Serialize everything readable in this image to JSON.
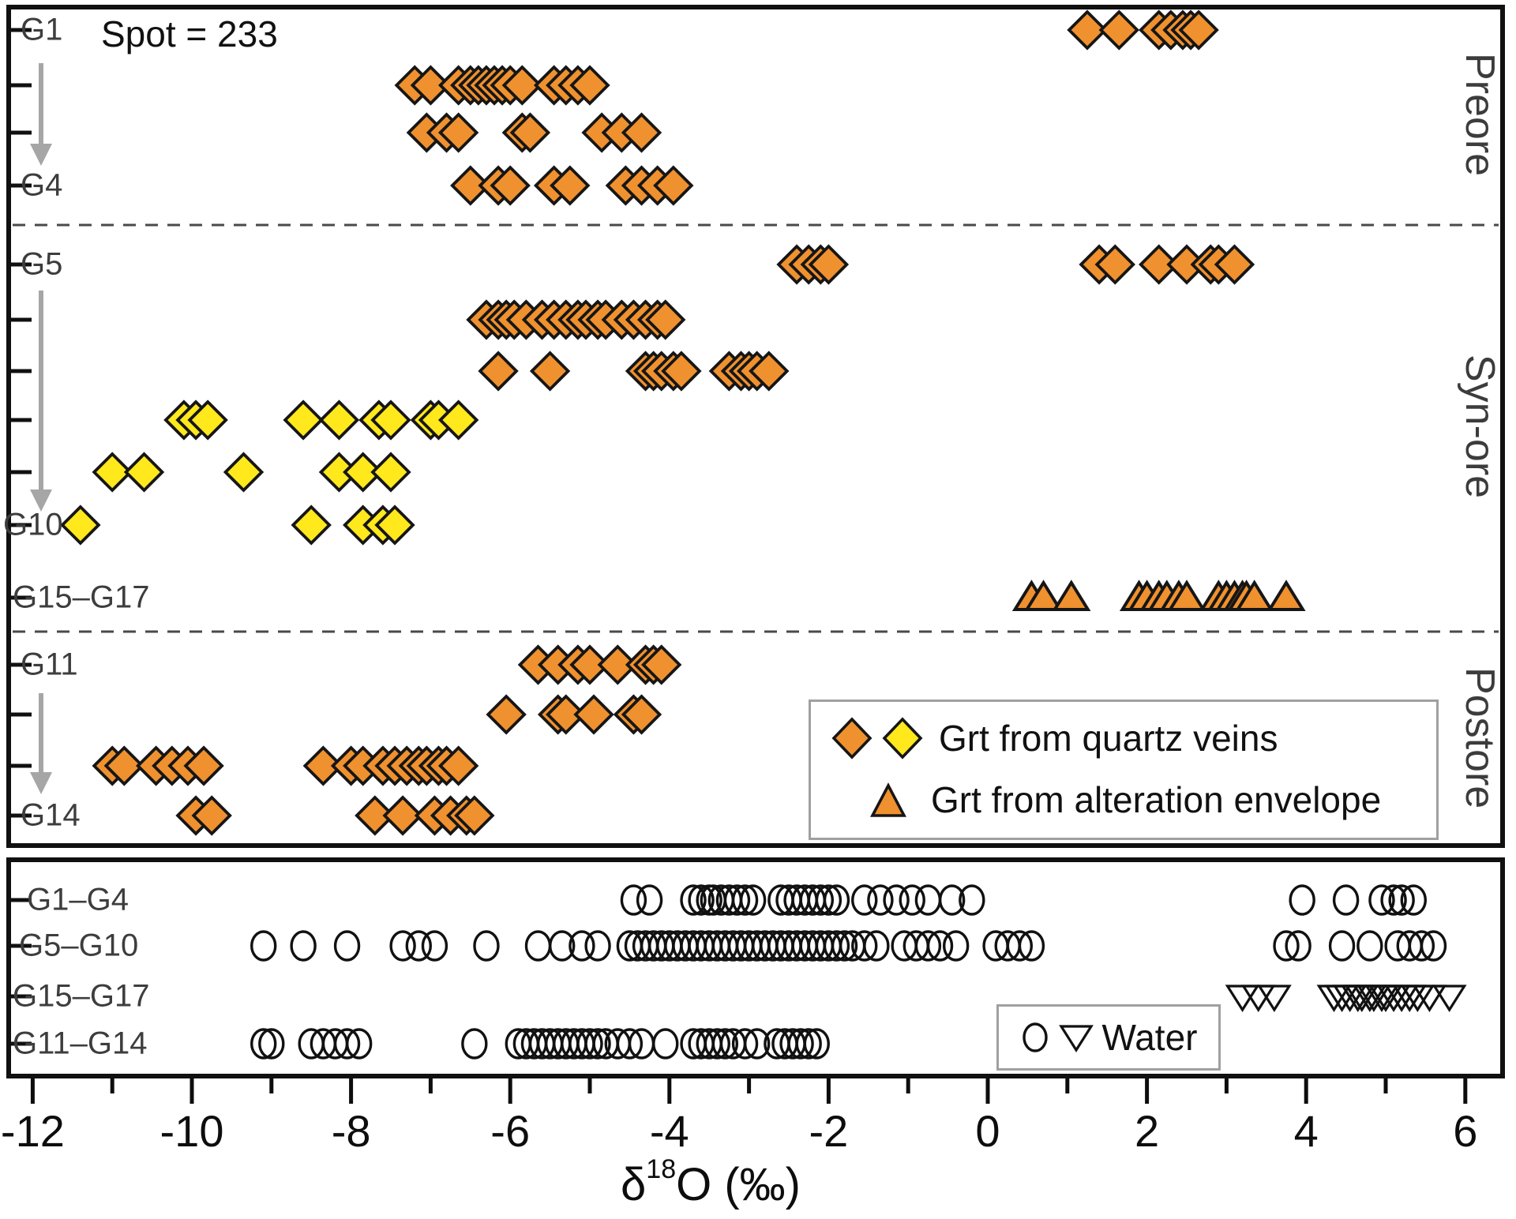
{
  "spot_note": "Spot = 233",
  "sections": [
    {
      "name": "Preore"
    },
    {
      "name": "Syn-ore"
    },
    {
      "name": "Postore"
    }
  ],
  "legend_garnet": {
    "items": [
      {
        "markers": [
          "diamond-orange",
          "diamond-yellow"
        ],
        "label": "Grt from quartz veins"
      },
      {
        "markers": [
          "triangle-orange"
        ],
        "label": "Grt from alteration envelope"
      }
    ]
  },
  "legend_water": {
    "markers": [
      "circle-open",
      "triangle-down-open"
    ],
    "label": "Water"
  },
  "axis": {
    "title_delta": "δ",
    "title_sup": "18",
    "title_rest": "O (‰)"
  },
  "colors": {
    "orange": "#F0912F",
    "yellow": "#FFE81C",
    "outline": "#161616",
    "open_marker": "#111111",
    "arrow_gray": "#a6a6a6",
    "label_gray": "#3d3d3d"
  },
  "chart_data": {
    "type": "scatter",
    "xlabel": "δ18O (‰)",
    "xlim": [
      -12.45,
      6.55
    ],
    "grid": false,
    "x_ticks_labeled": [
      -12,
      -10,
      -8,
      -6,
      -4,
      -2,
      0,
      2,
      4,
      6
    ],
    "x_ticks_minor": [
      -11,
      -9,
      -7,
      -5,
      -3,
      -1,
      1,
      3,
      5
    ],
    "arrows": [
      {
        "from": "G1",
        "to": "G4"
      },
      {
        "from": "G5",
        "to": "G10"
      },
      {
        "from": "G11",
        "to": "G14"
      }
    ],
    "panels": [
      {
        "id": "garnet",
        "sections": [
          "Preore",
          "Syn-ore",
          "Postore"
        ],
        "rows": [
          {
            "label": "G1",
            "section": "Preore",
            "marker": "diamond-orange",
            "values": [
              1.25,
              1.65,
              2.15,
              2.3,
              2.45,
              2.55,
              2.65
            ]
          },
          {
            "label": "",
            "section": "Preore",
            "marker": "diamond-orange",
            "values": [
              -7.2,
              -7.0,
              -6.65,
              -6.5,
              -6.4,
              -6.3,
              -6.2,
              -6.1,
              -6.0,
              -5.85,
              -5.45,
              -5.3,
              -5.15,
              -5.0
            ]
          },
          {
            "label": "",
            "section": "Preore",
            "marker": "diamond-orange",
            "values": [
              -7.05,
              -6.8,
              -6.65,
              -5.85,
              -5.75,
              -4.85,
              -4.6,
              -4.35
            ]
          },
          {
            "label": "G4",
            "section": "Preore",
            "marker": "diamond-orange",
            "values": [
              -6.5,
              -6.15,
              -6.0,
              -5.45,
              -5.25,
              -4.55,
              -4.35,
              -4.15,
              -3.95
            ]
          },
          {
            "label": "G5",
            "section": "Syn-ore",
            "marker": "diamond-orange",
            "values": [
              -2.4,
              -2.25,
              -2.1,
              -2.0,
              1.4,
              1.6,
              2.15,
              2.5,
              2.8,
              2.9,
              3.1
            ]
          },
          {
            "label": "",
            "section": "Syn-ore",
            "marker": "diamond-orange",
            "values": [
              -6.3,
              -6.15,
              -6.05,
              -5.95,
              -5.8,
              -5.6,
              -5.45,
              -5.3,
              -5.15,
              -5.05,
              -4.9,
              -4.8,
              -4.6,
              -4.45,
              -4.3,
              -4.15,
              -4.05
            ]
          },
          {
            "label": "",
            "section": "Syn-ore",
            "marker": "diamond-orange",
            "values": [
              -6.15,
              -5.5,
              -4.3,
              -4.2,
              -4.1,
              -3.95,
              -3.85,
              -3.25,
              -3.1,
              -3.0,
              -2.9,
              -2.75
            ]
          },
          {
            "label": "",
            "section": "Syn-ore",
            "marker": "diamond-yellow",
            "values": [
              -10.1,
              -9.95,
              -9.8,
              -8.6,
              -8.15,
              -7.65,
              -7.5,
              -7.0,
              -6.9,
              -6.65
            ]
          },
          {
            "label": "",
            "section": "Syn-ore",
            "marker": "diamond-yellow",
            "values": [
              -11.0,
              -10.6,
              -9.35,
              -8.15,
              -7.85,
              -7.5
            ]
          },
          {
            "label": "G10",
            "section": "Syn-ore",
            "marker": "diamond-yellow",
            "values": [
              -11.4,
              -8.5,
              -7.85,
              -7.6,
              -7.45
            ]
          },
          {
            "label": "G15–G17",
            "section": "Syn-ore",
            "marker": "triangle-orange",
            "values": [
              0.55,
              0.7,
              1.05,
              1.9,
              2.0,
              2.15,
              2.25,
              2.4,
              2.5,
              2.9,
              3.0,
              3.1,
              3.2,
              3.25,
              3.35,
              3.75
            ]
          },
          {
            "label": "G11",
            "section": "Postore",
            "marker": "diamond-orange",
            "values": [
              -5.65,
              -5.4,
              -5.15,
              -5.0,
              -4.65,
              -4.3,
              -4.2,
              -4.1
            ]
          },
          {
            "label": "",
            "section": "Postore",
            "marker": "diamond-orange",
            "values": [
              -6.05,
              -5.4,
              -5.3,
              -4.95,
              -4.45,
              -4.35
            ]
          },
          {
            "label": "",
            "section": "Postore",
            "marker": "diamond-orange",
            "values": [
              -11.0,
              -10.85,
              -10.45,
              -10.25,
              -10.05,
              -9.85,
              -8.35,
              -8.0,
              -7.85,
              -7.6,
              -7.45,
              -7.3,
              -7.15,
              -7.05,
              -6.9,
              -6.8,
              -6.65
            ]
          },
          {
            "label": "G14",
            "section": "Postore",
            "marker": "diamond-orange",
            "values": [
              -9.95,
              -9.75,
              -7.7,
              -7.35,
              -6.95,
              -6.75,
              -6.55,
              -6.45
            ]
          }
        ]
      },
      {
        "id": "water",
        "rows": [
          {
            "label": "G1–G4",
            "marker": "circle-open",
            "values": [
              -4.45,
              -4.25,
              -3.7,
              -3.6,
              -3.5,
              -3.45,
              -3.35,
              -3.25,
              -3.15,
              -3.05,
              -2.95,
              -2.6,
              -2.5,
              -2.4,
              -2.3,
              -2.2,
              -2.1,
              -2.0,
              -1.9,
              -1.55,
              -1.35,
              -1.15,
              -0.95,
              -0.75,
              -0.45,
              -0.2,
              3.95,
              4.5,
              4.95,
              5.1,
              5.2,
              5.35
            ]
          },
          {
            "label": "G5–G10",
            "marker": "circle-open",
            "values": [
              -9.1,
              -8.6,
              -8.05,
              -7.35,
              -7.15,
              -6.95,
              -6.3,
              -5.65,
              -5.35,
              -5.1,
              -4.9,
              -4.5,
              -4.4,
              -4.3,
              -4.2,
              -4.1,
              -4.0,
              -3.9,
              -3.8,
              -3.7,
              -3.6,
              -3.5,
              -3.4,
              -3.3,
              -3.2,
              -3.1,
              -3.0,
              -2.9,
              -2.8,
              -2.7,
              -2.6,
              -2.5,
              -2.4,
              -2.3,
              -2.2,
              -2.1,
              -2.0,
              -1.9,
              -1.8,
              -1.7,
              -1.55,
              -1.4,
              -1.05,
              -0.9,
              -0.75,
              -0.6,
              -0.4,
              0.1,
              0.25,
              0.4,
              0.55,
              3.75,
              3.9,
              4.45,
              4.8,
              5.15,
              5.3,
              5.45,
              5.6
            ]
          },
          {
            "label": "G15–G17",
            "marker": "triangle-down-open",
            "values": [
              3.2,
              3.4,
              3.6,
              4.35,
              4.45,
              4.55,
              4.65,
              4.7,
              4.8,
              4.85,
              4.95,
              5.0,
              5.1,
              5.2,
              5.3,
              5.4,
              5.55,
              5.8
            ]
          },
          {
            "label": "G11–G14",
            "marker": "circle-open",
            "values": [
              -9.1,
              -9.0,
              -8.5,
              -8.35,
              -8.2,
              -8.05,
              -7.9,
              -6.45,
              -5.9,
              -5.8,
              -5.7,
              -5.6,
              -5.5,
              -5.4,
              -5.3,
              -5.2,
              -5.1,
              -5.0,
              -4.9,
              -4.8,
              -4.65,
              -4.5,
              -4.35,
              -4.05,
              -3.7,
              -3.6,
              -3.5,
              -3.4,
              -3.3,
              -3.2,
              -3.05,
              -2.9,
              -2.65,
              -2.55,
              -2.45,
              -2.35,
              -2.25,
              -2.15
            ]
          }
        ]
      }
    ]
  }
}
